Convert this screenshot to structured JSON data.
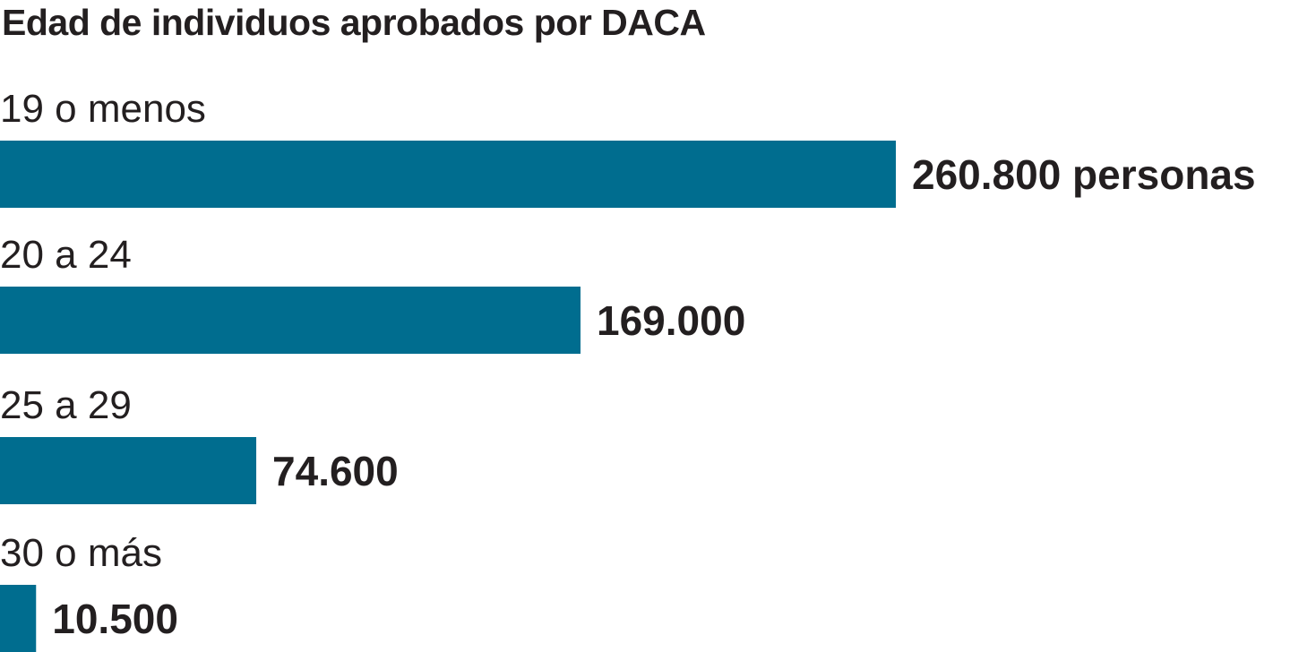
{
  "chart_data": {
    "type": "bar",
    "orientation": "horizontal",
    "title": "Edad de individuos aprobados por DACA",
    "categories": [
      "19 o menos",
      "20 a 24",
      "25 a 29",
      "30 o más"
    ],
    "values": [
      260800,
      169000,
      74600,
      10500
    ],
    "value_labels": [
      "260.800 personas",
      "169.000",
      "74.600",
      "10.500"
    ],
    "xlabel": "",
    "ylabel": "",
    "xlim": [
      0,
      260800
    ],
    "grid": false,
    "bar_color": "#006d8f"
  }
}
